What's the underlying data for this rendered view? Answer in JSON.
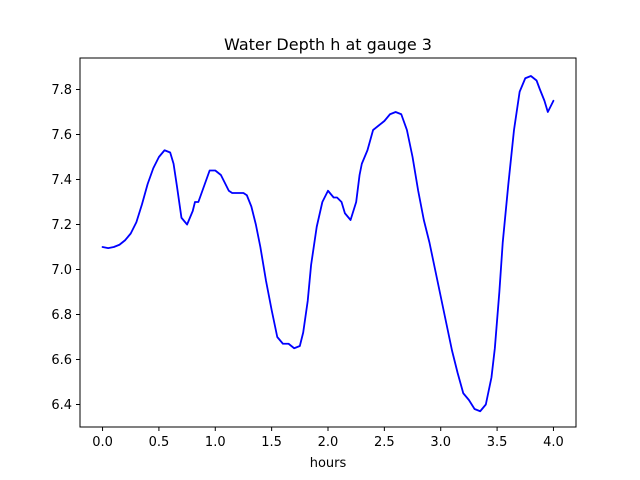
{
  "chart_data": {
    "type": "line",
    "title": "Water Depth h at gauge 3",
    "xlabel": "hours",
    "ylabel": "",
    "xlim": [
      -0.2,
      4.2
    ],
    "ylim": [
      6.3,
      7.94
    ],
    "xticks": [
      0.0,
      0.5,
      1.0,
      1.5,
      2.0,
      2.5,
      3.0,
      3.5,
      4.0
    ],
    "xtick_labels": [
      "0.0",
      "0.5",
      "1.0",
      "1.5",
      "2.0",
      "2.5",
      "3.0",
      "3.5",
      "4.0"
    ],
    "yticks": [
      6.4,
      6.6,
      6.8,
      7.0,
      7.2,
      7.4,
      7.6,
      7.8
    ],
    "ytick_labels": [
      "6.4",
      "6.6",
      "6.8",
      "7.0",
      "7.2",
      "7.4",
      "7.6",
      "7.8"
    ],
    "grid": false,
    "series": [
      {
        "color": "#0000ff",
        "x": [
          0.0,
          0.05,
          0.1,
          0.15,
          0.2,
          0.25,
          0.3,
          0.35,
          0.4,
          0.45,
          0.5,
          0.55,
          0.6,
          0.63,
          0.66,
          0.7,
          0.75,
          0.8,
          0.82,
          0.85,
          0.9,
          0.95,
          1.0,
          1.05,
          1.08,
          1.12,
          1.15,
          1.2,
          1.25,
          1.28,
          1.32,
          1.36,
          1.4,
          1.45,
          1.5,
          1.55,
          1.6,
          1.65,
          1.7,
          1.75,
          1.78,
          1.82,
          1.85,
          1.9,
          1.95,
          2.0,
          2.05,
          2.08,
          2.12,
          2.15,
          2.2,
          2.25,
          2.28,
          2.3,
          2.35,
          2.4,
          2.45,
          2.5,
          2.55,
          2.6,
          2.65,
          2.7,
          2.75,
          2.8,
          2.85,
          2.9,
          2.95,
          3.0,
          3.05,
          3.1,
          3.15,
          3.2,
          3.25,
          3.3,
          3.35,
          3.4,
          3.45,
          3.48,
          3.52,
          3.55,
          3.6,
          3.65,
          3.7,
          3.75,
          3.8,
          3.85,
          3.88,
          3.92,
          3.95,
          4.0
        ],
        "y": [
          7.1,
          7.095,
          7.1,
          7.11,
          7.13,
          7.16,
          7.21,
          7.29,
          7.38,
          7.45,
          7.5,
          7.53,
          7.52,
          7.47,
          7.37,
          7.23,
          7.2,
          7.26,
          7.3,
          7.3,
          7.37,
          7.44,
          7.44,
          7.42,
          7.39,
          7.35,
          7.34,
          7.34,
          7.34,
          7.33,
          7.28,
          7.2,
          7.1,
          6.95,
          6.82,
          6.7,
          6.67,
          6.67,
          6.65,
          6.66,
          6.72,
          6.86,
          7.02,
          7.19,
          7.3,
          7.35,
          7.32,
          7.32,
          7.3,
          7.25,
          7.22,
          7.3,
          7.42,
          7.47,
          7.53,
          7.62,
          7.64,
          7.66,
          7.69,
          7.7,
          7.69,
          7.62,
          7.5,
          7.35,
          7.22,
          7.12,
          7.0,
          6.88,
          6.76,
          6.64,
          6.54,
          6.45,
          6.42,
          6.38,
          6.37,
          6.4,
          6.52,
          6.65,
          6.9,
          7.12,
          7.38,
          7.62,
          7.79,
          7.85,
          7.86,
          7.84,
          7.8,
          7.75,
          7.7,
          7.75
        ]
      }
    ]
  }
}
